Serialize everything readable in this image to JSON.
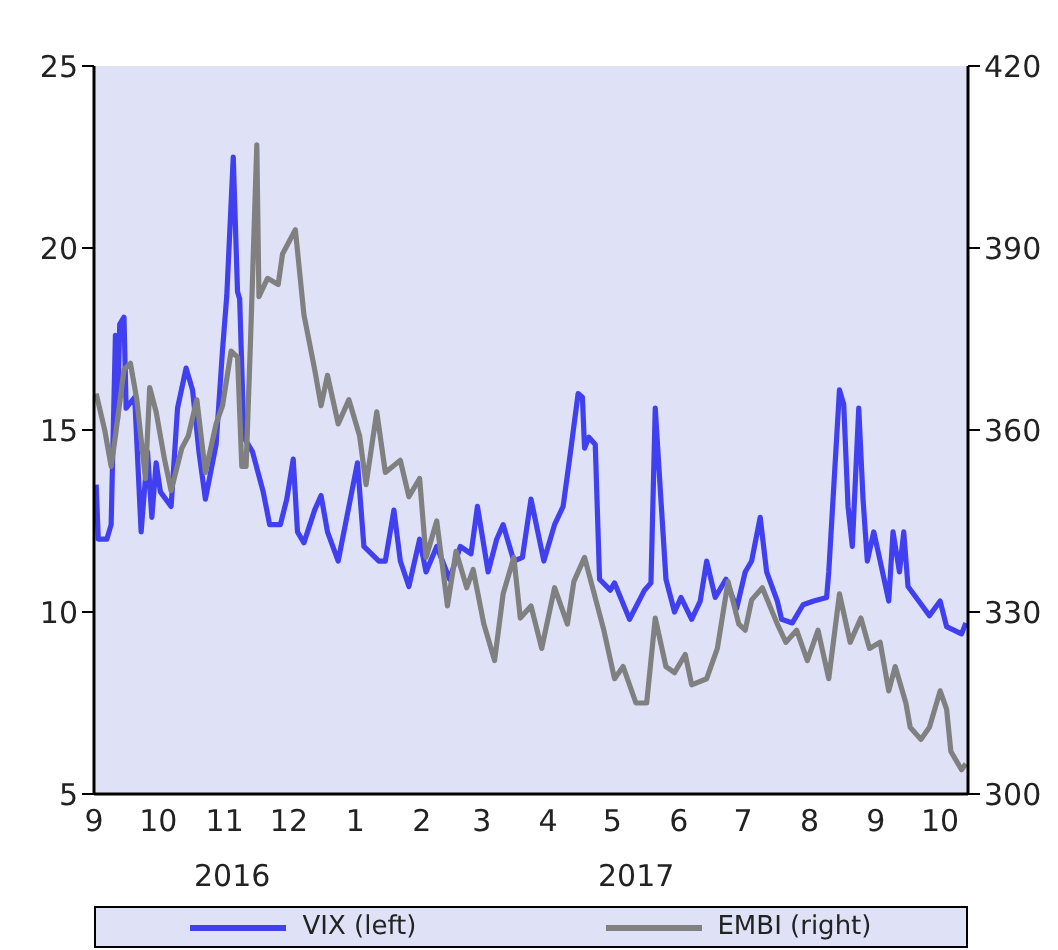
{
  "chart_data": {
    "type": "line",
    "xlim": [
      "2016-09-01",
      "2017-10-14"
    ],
    "xticks": [
      {
        "value": "2016-09-01",
        "label": "9"
      },
      {
        "value": "2016-10-01",
        "label": "10"
      },
      {
        "value": "2016-11-01",
        "label": "11"
      },
      {
        "value": "2016-12-01",
        "label": "12"
      },
      {
        "value": "2017-01-01",
        "label": "1"
      },
      {
        "value": "2017-02-01",
        "label": "2"
      },
      {
        "value": "2017-03-01",
        "label": "3"
      },
      {
        "value": "2017-04-01",
        "label": "4"
      },
      {
        "value": "2017-05-01",
        "label": "5"
      },
      {
        "value": "2017-06-01",
        "label": "6"
      },
      {
        "value": "2017-07-01",
        "label": "7"
      },
      {
        "value": "2017-08-01",
        "label": "8"
      },
      {
        "value": "2017-09-01",
        "label": "9"
      },
      {
        "value": "2017-10-01",
        "label": "10"
      }
    ],
    "ylim": [
      5,
      25
    ],
    "yticks": [
      5,
      10,
      15,
      20,
      25
    ],
    "y2lim": [
      300,
      420
    ],
    "y2ticks": [
      300,
      330,
      360,
      390,
      420
    ],
    "legend": "bottom",
    "annotations": [
      "2016",
      "2017"
    ],
    "series": [
      {
        "name": "VIX (left)",
        "color": "#4040f0",
        "x": [
          "2016-09-02",
          "2016-09-03",
          "2016-09-07",
          "2016-09-09",
          "2016-09-11",
          "2016-09-12",
          "2016-09-13",
          "2016-09-15",
          "2016-09-16",
          "2016-09-20",
          "2016-09-23",
          "2016-09-26",
          "2016-09-28",
          "2016-09-30",
          "2016-10-02",
          "2016-10-07",
          "2016-10-10",
          "2016-10-14",
          "2016-10-17",
          "2016-10-20",
          "2016-10-23",
          "2016-10-28",
          "2016-10-31",
          "2016-11-02",
          "2016-11-05",
          "2016-11-07",
          "2016-11-08",
          "2016-11-10",
          "2016-11-14",
          "2016-11-19",
          "2016-11-22",
          "2016-11-27",
          "2016-11-30",
          "2016-12-03",
          "2016-12-05",
          "2016-12-08",
          "2016-12-13",
          "2016-12-16",
          "2016-12-19",
          "2016-12-24",
          "2016-12-29",
          "2017-01-02",
          "2017-01-05",
          "2017-01-12",
          "2017-01-15",
          "2017-01-19",
          "2017-01-22",
          "2017-01-26",
          "2017-01-31",
          "2017-02-03",
          "2017-02-08",
          "2017-02-14",
          "2017-02-19",
          "2017-02-24",
          "2017-02-27",
          "2017-03-04",
          "2017-03-08",
          "2017-03-11",
          "2017-03-16",
          "2017-03-20",
          "2017-03-24",
          "2017-03-30",
          "2017-04-04",
          "2017-04-08",
          "2017-04-11",
          "2017-04-15",
          "2017-04-17",
          "2017-04-18",
          "2017-04-20",
          "2017-04-23",
          "2017-04-25",
          "2017-04-30",
          "2017-05-02",
          "2017-05-09",
          "2017-05-16",
          "2017-05-19",
          "2017-05-21",
          "2017-05-23",
          "2017-05-26",
          "2017-05-30",
          "2017-06-02",
          "2017-06-07",
          "2017-06-11",
          "2017-06-14",
          "2017-06-18",
          "2017-06-23",
          "2017-06-28",
          "2017-07-02",
          "2017-07-05",
          "2017-07-09",
          "2017-07-12",
          "2017-07-17",
          "2017-07-19",
          "2017-07-24",
          "2017-07-29",
          "2017-08-03",
          "2017-08-09",
          "2017-08-10",
          "2017-08-15",
          "2017-08-17",
          "2017-08-19",
          "2017-08-21",
          "2017-08-24",
          "2017-08-26",
          "2017-08-28",
          "2017-08-31",
          "2017-09-03",
          "2017-09-07",
          "2017-09-09",
          "2017-09-12",
          "2017-09-14",
          "2017-09-16",
          "2017-09-21",
          "2017-09-26",
          "2017-10-01",
          "2017-10-04",
          "2017-10-11",
          "2017-10-13"
        ],
        "values": [
          13.5,
          12.0,
          12.0,
          12.4,
          17.6,
          15.3,
          17.9,
          18.1,
          15.6,
          15.9,
          12.2,
          14.4,
          12.6,
          14.1,
          13.3,
          12.9,
          15.6,
          16.7,
          16.1,
          14.4,
          13.1,
          14.6,
          17.2,
          18.7,
          22.5,
          18.8,
          18.6,
          14.8,
          14.4,
          13.3,
          12.4,
          12.4,
          13.1,
          14.2,
          12.2,
          11.9,
          12.8,
          13.2,
          12.2,
          11.4,
          12.9,
          14.1,
          11.8,
          11.4,
          11.4,
          12.8,
          11.4,
          10.7,
          12.0,
          11.1,
          11.8,
          10.9,
          11.8,
          11.6,
          12.9,
          11.1,
          12.0,
          12.4,
          11.4,
          11.5,
          13.1,
          11.4,
          12.4,
          12.9,
          14.2,
          16.0,
          15.9,
          14.5,
          14.8,
          14.6,
          10.9,
          10.6,
          10.8,
          9.8,
          10.6,
          10.8,
          15.6,
          13.7,
          10.9,
          10.0,
          10.4,
          9.8,
          10.3,
          11.4,
          10.4,
          10.9,
          10.1,
          11.1,
          11.4,
          12.6,
          11.1,
          10.3,
          9.8,
          9.7,
          10.2,
          10.3,
          10.4,
          11.1,
          16.1,
          15.7,
          12.9,
          11.8,
          15.6,
          13.1,
          11.4,
          12.2,
          11.4,
          10.3,
          12.2,
          11.1,
          12.2,
          10.7,
          10.3,
          9.9,
          10.3,
          9.6,
          9.4,
          9.7
        ]
      },
      {
        "name": "EMBI (right)",
        "color": "#808080",
        "axis": "y2",
        "x": [
          "2016-09-02",
          "2016-09-06",
          "2016-09-09",
          "2016-09-11",
          "2016-09-15",
          "2016-09-18",
          "2016-09-21",
          "2016-09-25",
          "2016-09-27",
          "2016-09-30",
          "2016-10-04",
          "2016-10-07",
          "2016-10-12",
          "2016-10-15",
          "2016-10-19",
          "2016-10-23",
          "2016-10-28",
          "2016-10-31",
          "2016-11-04",
          "2016-11-07",
          "2016-11-09",
          "2016-11-11",
          "2016-11-13",
          "2016-11-16",
          "2016-11-17",
          "2016-11-21",
          "2016-11-26",
          "2016-11-28",
          "2016-12-04",
          "2016-12-08",
          "2016-12-13",
          "2016-12-16",
          "2016-12-19",
          "2016-12-24",
          "2016-12-29",
          "2017-01-03",
          "2017-01-06",
          "2017-01-11",
          "2017-01-15",
          "2017-01-22",
          "2017-01-26",
          "2017-01-31",
          "2017-02-03",
          "2017-02-08",
          "2017-02-13",
          "2017-02-17",
          "2017-02-22",
          "2017-02-25",
          "2017-03-02",
          "2017-03-07",
          "2017-03-11",
          "2017-03-16",
          "2017-03-19",
          "2017-03-24",
          "2017-03-29",
          "2017-04-04",
          "2017-04-10",
          "2017-04-13",
          "2017-04-18",
          "2017-04-27",
          "2017-05-02",
          "2017-05-06",
          "2017-05-12",
          "2017-05-17",
          "2017-05-21",
          "2017-05-26",
          "2017-05-30",
          "2017-06-04",
          "2017-06-07",
          "2017-06-14",
          "2017-06-19",
          "2017-06-24",
          "2017-06-29",
          "2017-07-02",
          "2017-07-05",
          "2017-07-10",
          "2017-07-17",
          "2017-07-21",
          "2017-07-26",
          "2017-07-31",
          "2017-08-05",
          "2017-08-10",
          "2017-08-15",
          "2017-08-20",
          "2017-08-25",
          "2017-08-29",
          "2017-09-03",
          "2017-09-07",
          "2017-09-10",
          "2017-09-15",
          "2017-09-17",
          "2017-09-22",
          "2017-09-26",
          "2017-10-01",
          "2017-10-04",
          "2017-10-06",
          "2017-10-11",
          "2017-10-13"
        ],
        "values": [
          366,
          360,
          354,
          359,
          370,
          371,
          365,
          352,
          367,
          363,
          355,
          350,
          357,
          359,
          365,
          353,
          361,
          364,
          373,
          372,
          354,
          354,
          374,
          407,
          382,
          385,
          384,
          389,
          393,
          379,
          370,
          364,
          369,
          361,
          365,
          359,
          351,
          363,
          353,
          355,
          349,
          352,
          339,
          345,
          331,
          340,
          334,
          337,
          328,
          322,
          333,
          339,
          329,
          331,
          324,
          334,
          328,
          335,
          339,
          327,
          319,
          321,
          315,
          315,
          329,
          321,
          320,
          323,
          318,
          319,
          324,
          335,
          328,
          327,
          332,
          334,
          328,
          325,
          327,
          322,
          327,
          319,
          333,
          325,
          329,
          324,
          325,
          317,
          321,
          315,
          311,
          309,
          311,
          317,
          314,
          307,
          304,
          305
        ]
      }
    ]
  }
}
